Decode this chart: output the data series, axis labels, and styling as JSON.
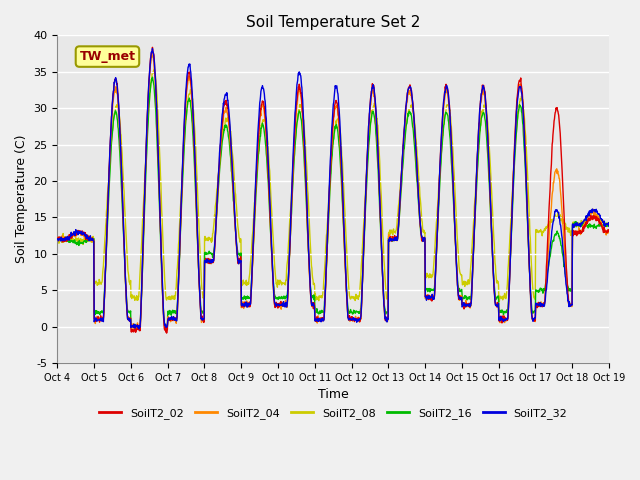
{
  "title": "Soil Temperature Set 2",
  "xlabel": "Time",
  "ylabel": "Soil Temperature (C)",
  "ylim": [
    -5,
    40
  ],
  "xlim_days": 15,
  "plot_bg": "#e8e8e8",
  "fig_bg": "#f0f0f0",
  "series_colors": {
    "SoilT2_02": "#dd0000",
    "SoilT2_04": "#ff8800",
    "SoilT2_08": "#cccc00",
    "SoilT2_16": "#00bb00",
    "SoilT2_32": "#0000dd"
  },
  "xtick_labels": [
    "Oct 4",
    "Oct 5",
    "Oct 6",
    "Oct 7",
    "Oct 8",
    "Oct 9",
    "Oct 10",
    "Oct 11",
    "Oct 12",
    "Oct 13",
    "Oct 14",
    "Oct 15",
    "Oct 16",
    "Oct 17",
    "Oct 18",
    "Oct 19"
  ],
  "ytick_values": [
    -5,
    0,
    5,
    10,
    15,
    20,
    25,
    30,
    35,
    40
  ],
  "annotation_text": "TW_met",
  "annotation_color": "#990000",
  "annotation_bg": "#ffff99",
  "annotation_border": "#999900",
  "legend_entries": [
    "SoilT2_02",
    "SoilT2_04",
    "SoilT2_08",
    "SoilT2_16",
    "SoilT2_32"
  ]
}
